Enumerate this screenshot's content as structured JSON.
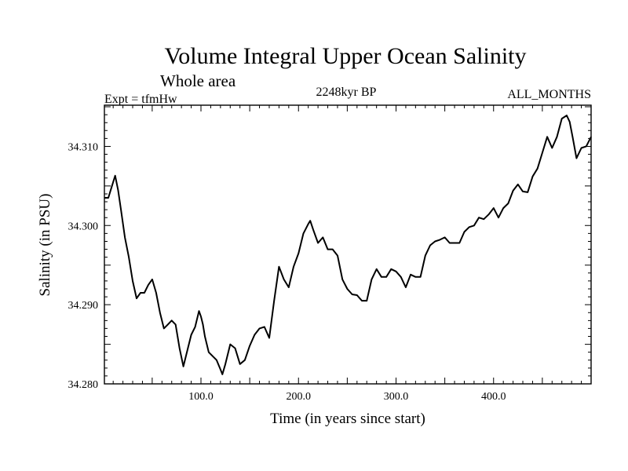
{
  "chart_data": {
    "type": "line",
    "title": "Volume Integral Upper Ocean Salinity",
    "subtitle": "Whole area",
    "experiment_label": "Expt = tfmHw",
    "period_label": "2248kyr BP",
    "months_label": "ALL_MONTHS",
    "xlabel": "Time (in years since start)",
    "ylabel": "Salinity (in PSU)",
    "xlim": [
      1,
      500
    ],
    "ylim": [
      34.28,
      34.3152
    ],
    "xticks": [
      {
        "value": 100,
        "label": "100.0"
      },
      {
        "value": 200,
        "label": "200.0"
      },
      {
        "value": 300,
        "label": "300.0"
      },
      {
        "value": 400,
        "label": "400.0"
      }
    ],
    "yticks": [
      {
        "value": 34.28,
        "label": "34.280"
      },
      {
        "value": 34.29,
        "label": "34.290"
      },
      {
        "value": 34.3,
        "label": "34.300"
      },
      {
        "value": 34.31,
        "label": "34.310"
      }
    ],
    "series": [
      {
        "name": "Salinity",
        "x": [
          1,
          5,
          10,
          12,
          15,
          18,
          22,
          26,
          30,
          34,
          38,
          42,
          46,
          50,
          54,
          58,
          62,
          66,
          70,
          74,
          78,
          82,
          86,
          90,
          94,
          98,
          100,
          102,
          104,
          108,
          112,
          116,
          120,
          122,
          125,
          130,
          135,
          140,
          145,
          150,
          155,
          160,
          165,
          170,
          175,
          180,
          185,
          190,
          195,
          200,
          205,
          210,
          212,
          215,
          220,
          225,
          230,
          235,
          240,
          245,
          250,
          255,
          260,
          265,
          270,
          275,
          280,
          285,
          290,
          295,
          300,
          305,
          310,
          315,
          320,
          325,
          330,
          335,
          340,
          345,
          350,
          355,
          360,
          365,
          370,
          375,
          380,
          385,
          390,
          395,
          400,
          405,
          410,
          415,
          420,
          425,
          430,
          435,
          440,
          445,
          450,
          455,
          460,
          465,
          470,
          475,
          478,
          481,
          485,
          490,
          495,
          500
        ],
        "y": [
          34.3035,
          34.3035,
          34.3055,
          34.3063,
          34.3045,
          34.302,
          34.2985,
          34.296,
          34.293,
          34.2908,
          34.2915,
          34.2915,
          34.2925,
          34.2932,
          34.2915,
          34.289,
          34.287,
          34.2875,
          34.288,
          34.2875,
          34.2845,
          34.2822,
          34.2842,
          34.2862,
          34.2872,
          34.2892,
          34.2885,
          34.2875,
          34.286,
          34.284,
          34.2835,
          34.283,
          34.2818,
          34.2812,
          34.2825,
          34.285,
          34.2845,
          34.2825,
          34.283,
          34.2848,
          34.2862,
          34.287,
          34.2872,
          34.2858,
          34.2905,
          34.2948,
          34.2932,
          34.2922,
          34.2948,
          34.2965,
          34.299,
          34.3002,
          34.3006,
          34.2995,
          34.2978,
          34.2985,
          34.297,
          34.297,
          34.2962,
          34.2932,
          34.292,
          34.2913,
          34.2912,
          34.2905,
          34.2905,
          34.2932,
          34.2945,
          34.2935,
          34.2935,
          34.2945,
          34.2942,
          34.2935,
          34.2922,
          34.2938,
          34.2935,
          34.2935,
          34.2962,
          34.2975,
          34.298,
          34.2982,
          34.2985,
          34.2978,
          34.2978,
          34.2978,
          34.2992,
          34.2998,
          34.3,
          34.301,
          34.3008,
          34.3014,
          34.3022,
          34.301,
          34.3022,
          34.3028,
          34.3044,
          34.3052,
          34.3043,
          34.3042,
          34.3062,
          34.3072,
          34.3092,
          34.3112,
          34.3098,
          34.3112,
          34.3135,
          34.3139,
          34.3131,
          34.3112,
          34.3085,
          34.3098,
          34.31,
          34.3112
        ]
      }
    ]
  }
}
